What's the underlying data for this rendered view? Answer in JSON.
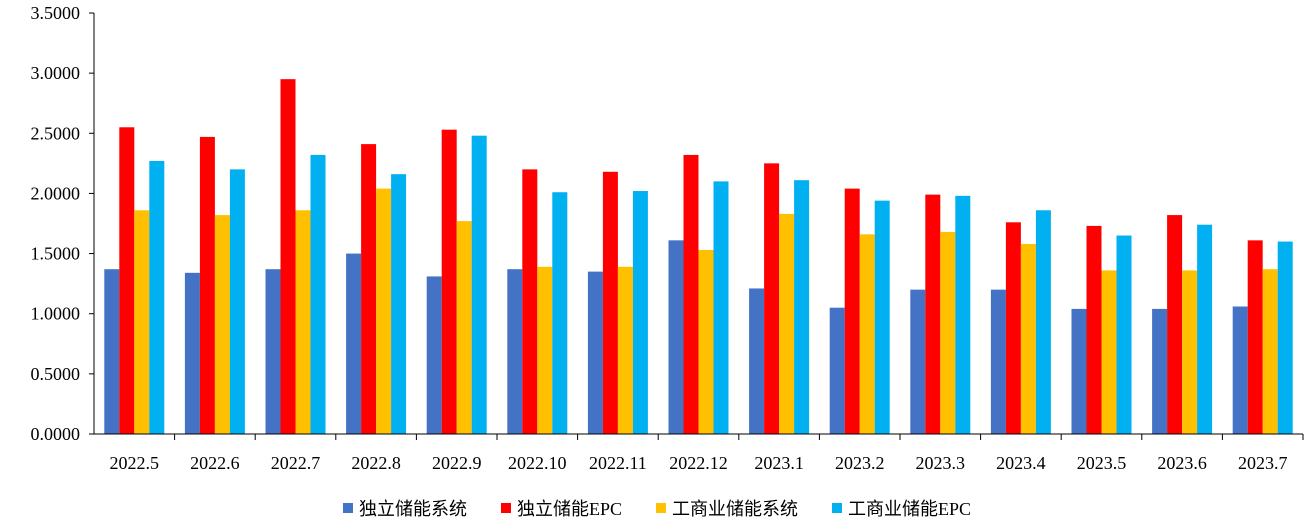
{
  "chart_data": {
    "type": "bar",
    "title": "",
    "xlabel": "",
    "ylabel": "",
    "ylim": [
      0,
      3.5
    ],
    "yticks": [
      "0.0000",
      "0.5000",
      "1.0000",
      "1.5000",
      "2.0000",
      "2.5000",
      "3.0000",
      "3.5000"
    ],
    "grid": false,
    "legend_position": "bottom",
    "categories": [
      "2022.5",
      "2022.6",
      "2022.7",
      "2022.8",
      "2022.9",
      "2022.10",
      "2022.11",
      "2022.12",
      "2023.1",
      "2023.2",
      "2023.3",
      "2023.4",
      "2023.5",
      "2023.6",
      "2023.7"
    ],
    "series": [
      {
        "name": "独立储能系统",
        "color": "#4472C4",
        "values": [
          1.37,
          1.34,
          1.37,
          1.5,
          1.31,
          1.37,
          1.35,
          1.61,
          1.21,
          1.05,
          1.2,
          1.2,
          1.04,
          1.04,
          1.06
        ]
      },
      {
        "name": "独立储能EPC",
        "color": "#FF0000",
        "values": [
          2.55,
          2.47,
          2.95,
          2.41,
          2.53,
          2.2,
          2.18,
          2.32,
          2.25,
          2.04,
          1.99,
          1.76,
          1.73,
          1.82,
          1.61
        ]
      },
      {
        "name": "工商业储能系统",
        "color": "#FFC000",
        "values": [
          1.86,
          1.82,
          1.86,
          2.04,
          1.77,
          1.39,
          1.39,
          1.53,
          1.83,
          1.66,
          1.68,
          1.58,
          1.36,
          1.36,
          1.37
        ]
      },
      {
        "name": "工商业储能EPC",
        "color": "#00B0F0",
        "values": [
          2.27,
          2.2,
          2.32,
          2.16,
          2.48,
          2.01,
          2.02,
          2.1,
          2.11,
          1.94,
          1.98,
          1.86,
          1.65,
          1.74,
          1.6
        ]
      }
    ]
  }
}
